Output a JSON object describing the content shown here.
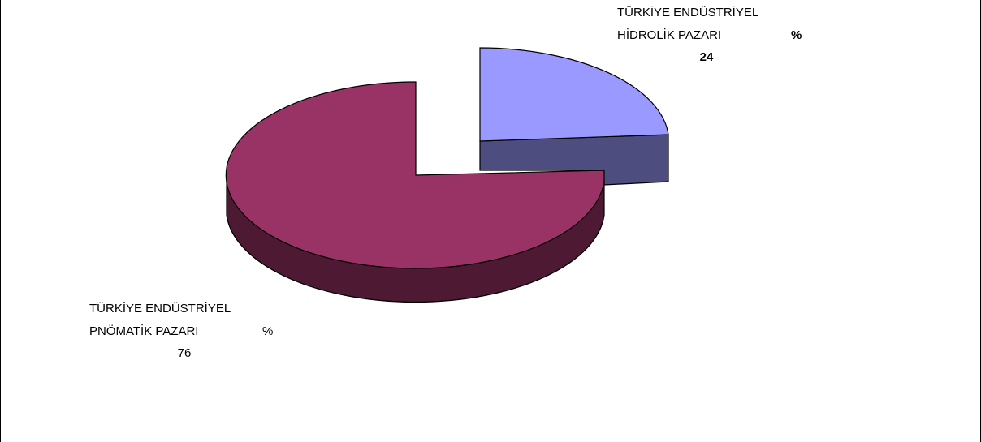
{
  "chart_data": {
    "type": "pie",
    "style": "3d-exploded",
    "slices": [
      {
        "label_line1": "TÜRKİYE ENDÜSTRİYEL",
        "label_line2": "HİDROLİK PAZARI",
        "pct_sign": "%",
        "value": 24,
        "value_text": "24",
        "top_color": "#9999ff",
        "side_color": "#4d4d80",
        "label_bold": true
      },
      {
        "label_line1": "TÜRKİYE ENDÜSTRİYEL",
        "label_line2": "PNÖMATİK PAZARI",
        "pct_sign": "%",
        "value": 76,
        "value_text": "76",
        "top_color": "#993366",
        "side_color": "#4d1933",
        "label_bold": false
      }
    ],
    "legend": "none"
  }
}
